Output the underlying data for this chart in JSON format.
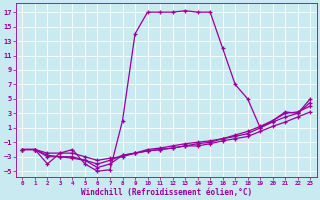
{
  "xlabel": "Windchill (Refroidissement éolien,°C)",
  "background_color": "#c8eaf0",
  "grid_color": "#ffffff",
  "line_color": "#990099",
  "xlim": [
    -0.5,
    23.5
  ],
  "ylim": [
    -5.8,
    18.2
  ],
  "xticks": [
    0,
    1,
    2,
    3,
    4,
    5,
    6,
    7,
    8,
    9,
    10,
    11,
    12,
    13,
    14,
    15,
    16,
    17,
    18,
    19,
    20,
    21,
    22,
    23
  ],
  "yticks": [
    -5,
    -3,
    -1,
    1,
    3,
    5,
    7,
    9,
    11,
    13,
    15,
    17
  ],
  "curve1_x": [
    0,
    1,
    2,
    3,
    4,
    5,
    6,
    7,
    8,
    9,
    10,
    11,
    12,
    13,
    14,
    15,
    16,
    17,
    18,
    19,
    20,
    21,
    22,
    23
  ],
  "curve1_y": [
    -2,
    -2,
    -4,
    -2.5,
    -2,
    -4,
    -5,
    -4.8,
    2,
    14,
    17,
    17,
    17,
    17.2,
    17,
    17,
    12,
    7,
    5,
    1,
    2,
    3.2,
    3,
    5
  ],
  "curve2_x": [
    0,
    1,
    2,
    3,
    4,
    5,
    6,
    7,
    8,
    9,
    10,
    11,
    12,
    13,
    14,
    15,
    16,
    17,
    18,
    19,
    20,
    21,
    22,
    23
  ],
  "curve2_y": [
    -2,
    -2,
    -2.5,
    -2.5,
    -2.5,
    -3,
    -3.5,
    -3.2,
    -3,
    -2.5,
    -2.2,
    -2,
    -1.8,
    -1.5,
    -1.5,
    -1.2,
    -0.8,
    -0.5,
    -0.2,
    0.5,
    1.2,
    1.8,
    2.5,
    3.2
  ],
  "curve3_x": [
    0,
    1,
    2,
    3,
    4,
    5,
    6,
    7,
    8,
    9,
    10,
    11,
    12,
    13,
    14,
    15,
    16,
    17,
    18,
    19,
    20,
    21,
    22,
    23
  ],
  "curve3_y": [
    -2,
    -2,
    -3,
    -3,
    -3.2,
    -3.5,
    -4.5,
    -4,
    -2.8,
    -2.5,
    -2.2,
    -2,
    -1.8,
    -1.5,
    -1.2,
    -1,
    -0.5,
    -0.2,
    0.2,
    1,
    1.8,
    2.5,
    3,
    4.5
  ],
  "curve4_x": [
    0,
    1,
    2,
    3,
    4,
    5,
    6,
    7,
    8,
    9,
    10,
    11,
    12,
    13,
    14,
    15,
    16,
    17,
    18,
    19,
    20,
    21,
    22,
    23
  ],
  "curve4_y": [
    -2,
    -2,
    -2.8,
    -3,
    -3,
    -3.5,
    -4,
    -3.5,
    -2.8,
    -2.5,
    -2,
    -1.8,
    -1.5,
    -1.2,
    -1,
    -0.8,
    -0.5,
    0,
    0.5,
    1.2,
    2,
    3,
    3.2,
    4
  ]
}
